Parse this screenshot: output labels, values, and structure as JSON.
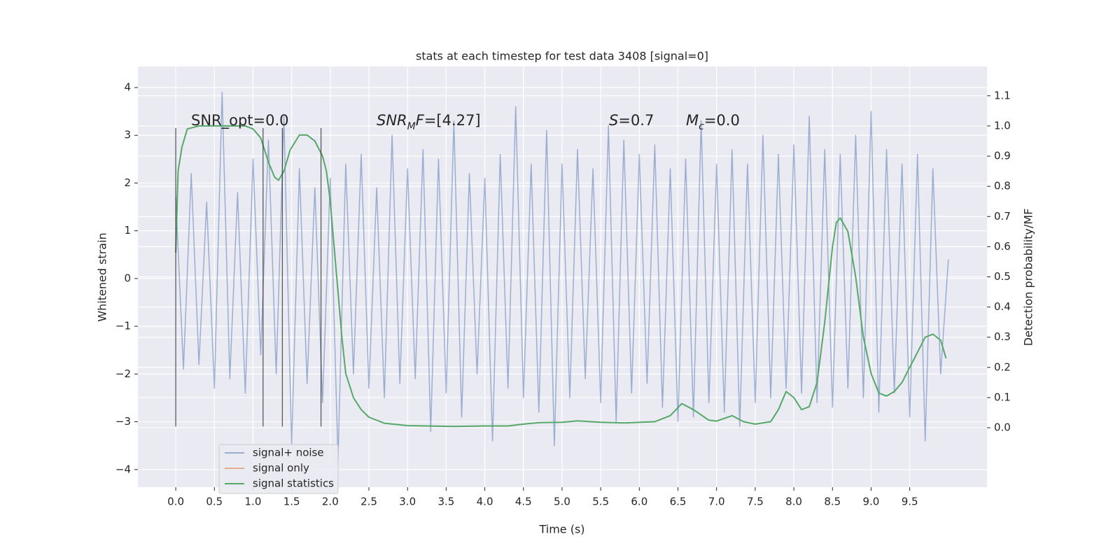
{
  "chart_data": {
    "type": "line",
    "title": "stats at each timestep for test data 3408 [signal=0]",
    "xlabel": "Time (s)",
    "ylabel": "Whitened strain",
    "y2label": "Detection probability/MF",
    "xlim": [
      -0.49,
      10.5
    ],
    "ylim": [
      -4.37,
      4.44
    ],
    "y2lim": [
      -0.197,
      1.197
    ],
    "xticks": [
      {
        "value": 0,
        "label": "0.0"
      },
      {
        "value": 0.5,
        "label": "0.5"
      },
      {
        "value": 1,
        "label": "1.0"
      },
      {
        "value": 1.5,
        "label": "1.5"
      },
      {
        "value": 2,
        "label": "2.0"
      },
      {
        "value": 2.5,
        "label": "2.5"
      },
      {
        "value": 3,
        "label": "3.0"
      },
      {
        "value": 3.5,
        "label": "3.5"
      },
      {
        "value": 4,
        "label": "4.0"
      },
      {
        "value": 4.5,
        "label": "4.5"
      },
      {
        "value": 5,
        "label": "5.0"
      },
      {
        "value": 5.5,
        "label": "5.5"
      },
      {
        "value": 6,
        "label": "6.0"
      },
      {
        "value": 6.5,
        "label": "6.5"
      },
      {
        "value": 7,
        "label": "7.0"
      },
      {
        "value": 7.5,
        "label": "7.5"
      },
      {
        "value": 8,
        "label": "8.0"
      },
      {
        "value": 8.5,
        "label": "8.5"
      },
      {
        "value": 9,
        "label": "9.0"
      },
      {
        "value": 9.5,
        "label": "9.5"
      }
    ],
    "yticks": [
      {
        "value": -4,
        "label": "−4"
      },
      {
        "value": -3,
        "label": "−3"
      },
      {
        "value": -2,
        "label": "−2"
      },
      {
        "value": -1,
        "label": "−1"
      },
      0,
      1,
      2,
      3,
      4
    ],
    "y2ticks": [
      {
        "value": 0,
        "label": "0.0"
      },
      {
        "value": 0.1,
        "label": "0.1"
      },
      {
        "value": 0.2,
        "label": "0.2"
      },
      {
        "value": 0.3,
        "label": "0.3"
      },
      {
        "value": 0.4,
        "label": "0.4"
      },
      {
        "value": 0.5,
        "label": "0.5"
      },
      {
        "value": 0.6,
        "label": "0.6"
      },
      {
        "value": 0.7,
        "label": "0.7"
      },
      {
        "value": 0.8,
        "label": "0.8"
      },
      {
        "value": 0.9,
        "label": "0.9"
      },
      {
        "value": 1,
        "label": "1.0"
      },
      {
        "value": 1.1,
        "label": "1.1"
      }
    ],
    "grid": true,
    "legend": "lower left",
    "series": [
      {
        "name": "signal+ noise",
        "color": "#4c72b0",
        "opacity": 0.5,
        "x": [
          0,
          0.1,
          0.2,
          0.3,
          0.4,
          0.5,
          0.6,
          0.7,
          0.8,
          0.9,
          1,
          1.1,
          1.2,
          1.3,
          1.4,
          1.5,
          1.6,
          1.7,
          1.8,
          1.9,
          2,
          2.1,
          2.2,
          2.3,
          2.4,
          2.5,
          2.6,
          2.7,
          2.8,
          2.9,
          3,
          3.1,
          3.2,
          3.3,
          3.4,
          3.5,
          3.6,
          3.7,
          3.8,
          3.9,
          4,
          4.1,
          4.2,
          4.3,
          4.4,
          4.5,
          4.6,
          4.7,
          4.8,
          4.9,
          5,
          5.1,
          5.2,
          5.3,
          5.4,
          5.5,
          5.6,
          5.7,
          5.8,
          5.9,
          6,
          6.1,
          6.2,
          6.3,
          6.4,
          6.5,
          6.6,
          6.7,
          6.8,
          6.9,
          7,
          7.1,
          7.2,
          7.3,
          7.4,
          7.5,
          7.6,
          7.7,
          7.8,
          7.9,
          8,
          8.1,
          8.2,
          8.3,
          8.4,
          8.5,
          8.6,
          8.7,
          8.8,
          8.9,
          9,
          9.1,
          9.2,
          9.3,
          9.4,
          9.5,
          9.6,
          9.7,
          9.8,
          9.9,
          10
        ],
        "values": [
          1.7,
          -1.9,
          2.2,
          -1.8,
          1.6,
          -2.3,
          3.9,
          -2.1,
          1.8,
          -2.4,
          2.5,
          -1.6,
          2.9,
          -2.0,
          3.4,
          -3.5,
          2.3,
          -2.2,
          1.9,
          -2.6,
          2.1,
          -3.8,
          2.4,
          -2.0,
          2.6,
          -2.3,
          1.9,
          -2.5,
          3.0,
          -2.2,
          2.3,
          -2.1,
          2.7,
          -3.2,
          2.5,
          -2.4,
          3.3,
          -2.9,
          2.2,
          -2.0,
          2.1,
          -3.4,
          2.6,
          -2.3,
          3.6,
          -2.5,
          2.4,
          -2.8,
          3.1,
          -3.5,
          2.4,
          -2.5,
          2.7,
          -2.1,
          2.3,
          -2.6,
          3.2,
          -3.0,
          2.9,
          -2.4,
          2.6,
          -2.2,
          2.8,
          -2.7,
          2.3,
          -3.0,
          2.5,
          -2.9,
          3.3,
          -2.6,
          2.4,
          -2.8,
          2.7,
          -3.1,
          2.4,
          -2.6,
          3.0,
          -2.5,
          2.6,
          -2.3,
          2.8,
          -2.4,
          3.4,
          -2.6,
          2.7,
          -2.7,
          2.6,
          -2.3,
          3.0,
          -2.5,
          3.5,
          -2.8,
          2.7,
          -2.4,
          2.4,
          -2.9,
          2.6,
          -3.4,
          2.3,
          -2.0,
          0.4
        ]
      },
      {
        "name": "signal only",
        "color": "#dd8452",
        "opacity": 0.6,
        "x": [],
        "values": []
      },
      {
        "name": "signal statistics",
        "color": "#55a868",
        "opacity": 1,
        "axis": "y2",
        "x": [
          0,
          0.03,
          0.08,
          0.15,
          0.3,
          0.5,
          0.7,
          0.9,
          1.0,
          1.1,
          1.2,
          1.28,
          1.33,
          1.4,
          1.48,
          1.6,
          1.7,
          1.8,
          1.9,
          1.95,
          2.0,
          2.05,
          2.1,
          2.15,
          2.2,
          2.3,
          2.4,
          2.5,
          2.7,
          3.0,
          3.6,
          4.0,
          4.3,
          4.5,
          4.7,
          5.0,
          5.2,
          5.5,
          5.8,
          6.2,
          6.4,
          6.55,
          6.7,
          6.9,
          7.0,
          7.2,
          7.35,
          7.5,
          7.7,
          7.8,
          7.9,
          8.0,
          8.1,
          8.2,
          8.3,
          8.4,
          8.5,
          8.55,
          8.6,
          8.7,
          8.8,
          8.9,
          9.0,
          9.1,
          9.2,
          9.3,
          9.4,
          9.5,
          9.6,
          9.7,
          9.8,
          9.9,
          9.97
        ],
        "values": [
          0.58,
          0.85,
          0.93,
          0.99,
          1.0,
          1.0,
          1.0,
          1.0,
          0.99,
          0.96,
          0.88,
          0.83,
          0.82,
          0.85,
          0.92,
          0.97,
          0.97,
          0.95,
          0.9,
          0.85,
          0.75,
          0.6,
          0.45,
          0.3,
          0.18,
          0.1,
          0.06,
          0.035,
          0.015,
          0.007,
          0.004,
          0.006,
          0.006,
          0.012,
          0.017,
          0.018,
          0.023,
          0.018,
          0.016,
          0.02,
          0.04,
          0.08,
          0.06,
          0.025,
          0.022,
          0.04,
          0.02,
          0.012,
          0.02,
          0.06,
          0.12,
          0.1,
          0.06,
          0.07,
          0.15,
          0.35,
          0.6,
          0.68,
          0.695,
          0.65,
          0.5,
          0.3,
          0.18,
          0.115,
          0.105,
          0.12,
          0.15,
          0.2,
          0.25,
          0.3,
          0.31,
          0.29,
          0.23
        ]
      }
    ],
    "vlines": {
      "x": [
        0,
        1.13,
        1.38,
        1.88
      ],
      "ymin": -3.1,
      "ymax": 3.15,
      "color": "#333333"
    },
    "annotations": [
      [
        {
          "text": "SNR_opt=0.0",
          "style": "normal"
        }
      ],
      [
        {
          "text": "SNR",
          "style": "italic"
        },
        {
          "text": "M",
          "style": "sub"
        },
        {
          "text": "F",
          "style": "italic"
        },
        {
          "text": "=[4.27]",
          "style": "normal"
        }
      ],
      [
        {
          "text": "S",
          "style": "italic"
        },
        {
          "text": "=0.7",
          "style": "normal"
        }
      ],
      [
        {
          "text": "M",
          "style": "italic"
        },
        {
          "text": "c",
          "style": "sub"
        },
        {
          "text": "=0.0",
          "style": "normal"
        }
      ]
    ]
  }
}
